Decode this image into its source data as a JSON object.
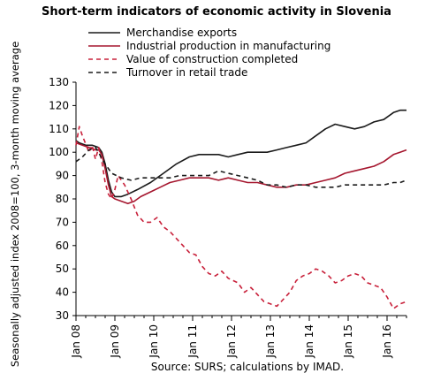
{
  "chart_data": {
    "type": "line",
    "title": "Short-term indicators of economic activity in Slovenia",
    "xlabel": "",
    "ylabel": "Seasonally adjusted index 2008=100, 3-month moving average",
    "ylim": [
      30,
      130
    ],
    "yticks": [
      "30",
      "40",
      "50",
      "60",
      "70",
      "80",
      "90",
      "100",
      "110",
      "120",
      "130"
    ],
    "xticks": [
      "Jan 08",
      "Jan 09",
      "Jan 10",
      "Jan 11",
      "Jan 12",
      "Jan 13",
      "Jan 14",
      "Jan 15",
      "Jan 16"
    ],
    "x_range": [
      "2008-01",
      "2016-07"
    ],
    "grid": false,
    "legend_position": "top-left",
    "series": [
      {
        "name": "Merchandise exports",
        "color": "#1a1a1a",
        "dash": "solid",
        "points": [
          [
            "2008-01",
            105
          ],
          [
            "2008-02",
            104
          ],
          [
            "2008-04",
            103
          ],
          [
            "2008-06",
            103
          ],
          [
            "2008-08",
            102
          ],
          [
            "2008-09",
            100
          ],
          [
            "2008-10",
            95
          ],
          [
            "2008-11",
            88
          ],
          [
            "2008-12",
            83
          ],
          [
            "2009-01",
            81
          ],
          [
            "2009-03",
            81
          ],
          [
            "2009-05",
            82
          ],
          [
            "2009-08",
            84
          ],
          [
            "2009-12",
            87
          ],
          [
            "2010-04",
            91
          ],
          [
            "2010-08",
            95
          ],
          [
            "2010-12",
            98
          ],
          [
            "2011-03",
            99
          ],
          [
            "2011-06",
            99
          ],
          [
            "2011-09",
            99
          ],
          [
            "2011-12",
            98
          ],
          [
            "2012-03",
            99
          ],
          [
            "2012-06",
            100
          ],
          [
            "2012-09",
            100
          ],
          [
            "2012-12",
            100
          ],
          [
            "2013-03",
            101
          ],
          [
            "2013-06",
            102
          ],
          [
            "2013-09",
            103
          ],
          [
            "2013-12",
            104
          ],
          [
            "2014-03",
            107
          ],
          [
            "2014-06",
            110
          ],
          [
            "2014-09",
            112
          ],
          [
            "2014-12",
            111
          ],
          [
            "2015-03",
            110
          ],
          [
            "2015-06",
            111
          ],
          [
            "2015-09",
            113
          ],
          [
            "2015-12",
            114
          ],
          [
            "2016-03",
            117
          ],
          [
            "2016-05",
            118
          ],
          [
            "2016-07",
            118
          ]
        ]
      },
      {
        "name": "Industrial production in manufacturing",
        "color": "#a5162e",
        "dash": "solid",
        "points": [
          [
            "2008-01",
            104
          ],
          [
            "2008-03",
            103
          ],
          [
            "2008-05",
            102
          ],
          [
            "2008-07",
            101
          ],
          [
            "2008-08",
            101
          ],
          [
            "2008-09",
            99
          ],
          [
            "2008-10",
            93
          ],
          [
            "2008-11",
            86
          ],
          [
            "2008-12",
            81
          ],
          [
            "2009-01",
            80
          ],
          [
            "2009-03",
            79
          ],
          [
            "2009-05",
            78
          ],
          [
            "2009-07",
            79
          ],
          [
            "2009-09",
            81
          ],
          [
            "2009-12",
            83
          ],
          [
            "2010-03",
            85
          ],
          [
            "2010-06",
            87
          ],
          [
            "2010-09",
            88
          ],
          [
            "2010-12",
            89
          ],
          [
            "2011-03",
            89
          ],
          [
            "2011-06",
            89
          ],
          [
            "2011-09",
            88
          ],
          [
            "2011-12",
            89
          ],
          [
            "2012-03",
            88
          ],
          [
            "2012-06",
            87
          ],
          [
            "2012-09",
            87
          ],
          [
            "2012-12",
            86
          ],
          [
            "2013-03",
            85
          ],
          [
            "2013-06",
            85
          ],
          [
            "2013-09",
            86
          ],
          [
            "2013-12",
            86
          ],
          [
            "2014-03",
            87
          ],
          [
            "2014-06",
            88
          ],
          [
            "2014-09",
            89
          ],
          [
            "2014-12",
            91
          ],
          [
            "2015-03",
            92
          ],
          [
            "2015-06",
            93
          ],
          [
            "2015-09",
            94
          ],
          [
            "2015-12",
            96
          ],
          [
            "2016-03",
            99
          ],
          [
            "2016-05",
            100
          ],
          [
            "2016-07",
            101
          ]
        ]
      },
      {
        "name": "Value of construction completed",
        "color": "#c8203a",
        "dash": "dashed",
        "points": [
          [
            "2008-01",
            103
          ],
          [
            "2008-02",
            111
          ],
          [
            "2008-03",
            107
          ],
          [
            "2008-05",
            100
          ],
          [
            "2008-06",
            103
          ],
          [
            "2008-07",
            97
          ],
          [
            "2008-08",
            102
          ],
          [
            "2008-09",
            96
          ],
          [
            "2008-10",
            87
          ],
          [
            "2008-11",
            82
          ],
          [
            "2008-12",
            80
          ],
          [
            "2009-01",
            84
          ],
          [
            "2009-02",
            90
          ],
          [
            "2009-04",
            86
          ],
          [
            "2009-06",
            80
          ],
          [
            "2009-08",
            73
          ],
          [
            "2009-10",
            70
          ],
          [
            "2009-12",
            70
          ],
          [
            "2010-02",
            72
          ],
          [
            "2010-04",
            68
          ],
          [
            "2010-06",
            66
          ],
          [
            "2010-08",
            63
          ],
          [
            "2010-10",
            60
          ],
          [
            "2010-12",
            57
          ],
          [
            "2011-02",
            56
          ],
          [
            "2011-04",
            51
          ],
          [
            "2011-06",
            48
          ],
          [
            "2011-08",
            47
          ],
          [
            "2011-10",
            49
          ],
          [
            "2011-12",
            46
          ],
          [
            "2012-03",
            44
          ],
          [
            "2012-05",
            40
          ],
          [
            "2012-07",
            42
          ],
          [
            "2012-09",
            39
          ],
          [
            "2012-11",
            36
          ],
          [
            "2013-01",
            35
          ],
          [
            "2013-03",
            34
          ],
          [
            "2013-05",
            37
          ],
          [
            "2013-07",
            40
          ],
          [
            "2013-09",
            45
          ],
          [
            "2013-11",
            47
          ],
          [
            "2014-01",
            48
          ],
          [
            "2014-03",
            50
          ],
          [
            "2014-05",
            49
          ],
          [
            "2014-07",
            47
          ],
          [
            "2014-09",
            44
          ],
          [
            "2014-11",
            45
          ],
          [
            "2015-01",
            47
          ],
          [
            "2015-03",
            48
          ],
          [
            "2015-05",
            47
          ],
          [
            "2015-07",
            44
          ],
          [
            "2015-09",
            43
          ],
          [
            "2015-11",
            42
          ],
          [
            "2016-01",
            38
          ],
          [
            "2016-03",
            33
          ],
          [
            "2016-05",
            35
          ],
          [
            "2016-07",
            36
          ]
        ]
      },
      {
        "name": "Turnover in retail trade",
        "color": "#1a1a1a",
        "dash": "dashed",
        "points": [
          [
            "2008-01",
            96
          ],
          [
            "2008-03",
            98
          ],
          [
            "2008-05",
            101
          ],
          [
            "2008-07",
            102
          ],
          [
            "2008-08",
            100
          ],
          [
            "2008-09",
            97
          ],
          [
            "2008-10",
            95
          ],
          [
            "2008-12",
            91
          ],
          [
            "2009-03",
            89
          ],
          [
            "2009-06",
            88
          ],
          [
            "2009-09",
            89
          ],
          [
            "2009-12",
            89
          ],
          [
            "2010-03",
            89
          ],
          [
            "2010-06",
            89
          ],
          [
            "2010-09",
            90
          ],
          [
            "2010-12",
            90
          ],
          [
            "2011-03",
            90
          ],
          [
            "2011-06",
            90
          ],
          [
            "2011-09",
            92
          ],
          [
            "2011-12",
            91
          ],
          [
            "2012-03",
            90
          ],
          [
            "2012-06",
            89
          ],
          [
            "2012-09",
            88
          ],
          [
            "2012-12",
            86
          ],
          [
            "2013-03",
            86
          ],
          [
            "2013-06",
            85
          ],
          [
            "2013-09",
            86
          ],
          [
            "2013-12",
            86
          ],
          [
            "2014-03",
            85
          ],
          [
            "2014-06",
            85
          ],
          [
            "2014-09",
            85
          ],
          [
            "2014-12",
            86
          ],
          [
            "2015-03",
            86
          ],
          [
            "2015-06",
            86
          ],
          [
            "2015-09",
            86
          ],
          [
            "2015-12",
            86
          ],
          [
            "2016-03",
            87
          ],
          [
            "2016-05",
            87
          ],
          [
            "2016-07",
            88
          ]
        ]
      }
    ]
  },
  "footer": {
    "source": "Source: SURS; calculations by IMAD."
  }
}
